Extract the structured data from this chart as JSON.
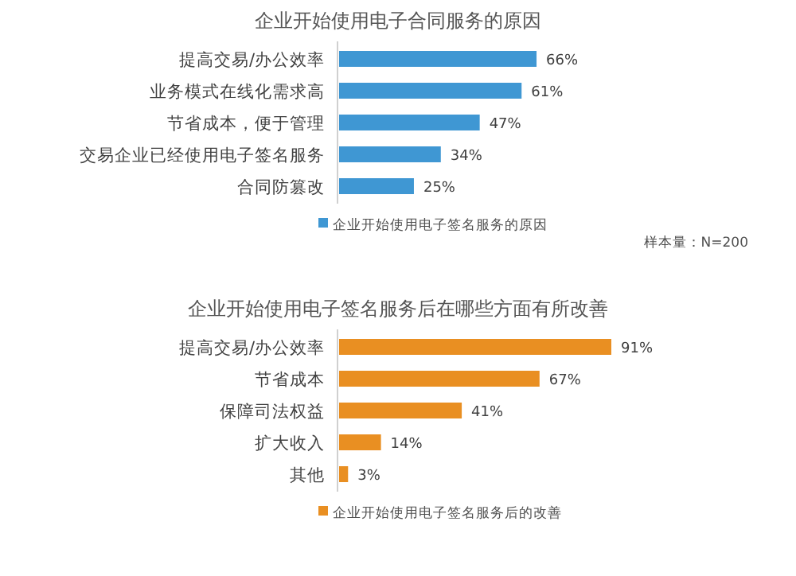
{
  "chart_data": [
    {
      "type": "bar",
      "orientation": "horizontal",
      "title": "企业开始使用电子合同服务的原因",
      "categories": [
        "提高交易/办公效率",
        "业务模式在线化需求高",
        "节省成本，便于管理",
        "交易企业已经使用电子签名服务",
        "合同防篡改"
      ],
      "series": [
        {
          "name": "企业开始使用电子签名服务的原因",
          "color": "#3f97d3",
          "values": [
            66,
            61,
            47,
            34,
            25
          ],
          "value_labels": [
            "66%",
            "61%",
            "47%",
            "34%",
            "25%"
          ]
        }
      ],
      "legend": "bottom",
      "annotations": [
        "样本量：N=200"
      ]
    },
    {
      "type": "bar",
      "orientation": "horizontal",
      "title": "企业开始使用电子签名服务后在哪些方面有所改善",
      "categories": [
        "提高交易/办公效率",
        "节省成本",
        "保障司法权益",
        "扩大收入",
        "其他"
      ],
      "series": [
        {
          "name": "企业开始使用电子签名服务后的改善",
          "color": "#e98f22",
          "values": [
            91,
            67,
            41,
            14,
            3
          ],
          "value_labels": [
            "91%",
            "67%",
            "41%",
            "14%",
            "3%"
          ]
        }
      ],
      "legend": "bottom"
    }
  ]
}
